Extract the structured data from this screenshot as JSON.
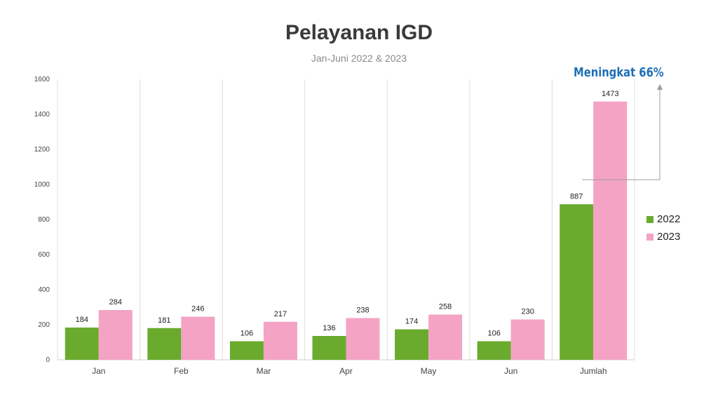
{
  "chart_data": {
    "type": "bar",
    "title": "Pelayanan IGD",
    "subtitle": "Jan-Juni 2022 & 2023",
    "categories": [
      "Jan",
      "Feb",
      "Mar",
      "Apr",
      "May",
      "Jun",
      "Jumlah"
    ],
    "series": [
      {
        "name": "2022",
        "color": "#6aab2e",
        "values": [
          184,
          181,
          106,
          136,
          174,
          106,
          887
        ]
      },
      {
        "name": "2023",
        "color": "#f4a3c4",
        "values": [
          284,
          246,
          217,
          238,
          258,
          230,
          1473
        ]
      }
    ],
    "ylim": [
      0,
      1600
    ],
    "yticks": [
      0,
      200,
      400,
      600,
      800,
      1000,
      1200,
      1400,
      1600
    ],
    "xlabel": "",
    "ylabel": "",
    "grid": "vertical",
    "legend": "right",
    "annotation": {
      "text": "Meningkat 66%",
      "color": "#1f6fb8"
    }
  }
}
